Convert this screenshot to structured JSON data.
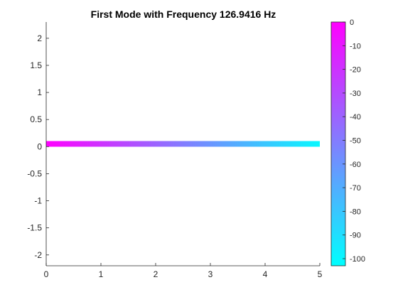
{
  "chart_data": {
    "type": "line",
    "title": "First Mode with Frequency 126.9416 Hz",
    "xlabel": "",
    "ylabel": "",
    "xlim": [
      0,
      5
    ],
    "ylim": [
      -2.2,
      2.3
    ],
    "x_ticks": [
      "0",
      "1",
      "2",
      "3",
      "4",
      "5"
    ],
    "y_ticks": [
      "2",
      "1.5",
      "1",
      "0.5",
      "0",
      "-0.5",
      "-1",
      "-1.5",
      "-2"
    ],
    "grid": false,
    "series": [
      {
        "x": [
          0,
          5
        ],
        "y": [
          0.05,
          0.05
        ],
        "color_scale": "cool",
        "color_values": [
          0,
          -100
        ]
      }
    ],
    "colorbar": {
      "orientation": "vertical",
      "location": "right",
      "range": [
        -103,
        0
      ],
      "ticks": [
        "0",
        "-10",
        "-20",
        "-30",
        "-40",
        "-50",
        "-60",
        "-70",
        "-80",
        "-90",
        "-100"
      ],
      "color_top": "#ff00ff",
      "color_bottom": "#00ffff"
    }
  }
}
